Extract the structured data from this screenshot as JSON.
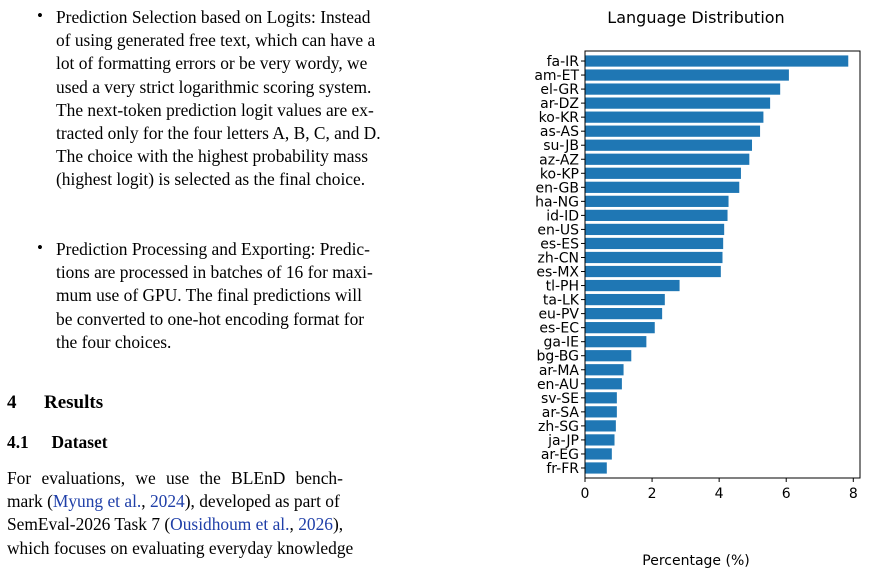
{
  "text": {
    "bullet1_lines": [
      "Prediction Selection based on Logits: Instead",
      "of using generated free text, which can have a",
      "lot of formatting errors or be very wordy, we",
      "used a very strict logarithmic scoring system.",
      "The next-token prediction logit values are ex-",
      "tracted only for the four letters A, B, C, and D.",
      "The choice with the highest probability mass",
      "(highest logit) is selected as the final choice."
    ],
    "bullet2_lines": [
      "Prediction Processing and Exporting: Predic-",
      "tions are processed in batches of 16 for maxi-",
      "mum use of GPU. The final predictions will",
      "be converted to one-hot encoding format for",
      "the four choices."
    ],
    "bullet_symbol": "•",
    "section_number": "4",
    "section_title": "Results",
    "subsection_number": "4.1",
    "subsection_title": "Dataset",
    "para": {
      "l1": "For evaluations, we use the BLEnD bench-",
      "l2_pre": "mark (",
      "l2_cite1": "Myung et al.",
      "l2_mid": ", ",
      "l2_cite2": "2024",
      "l2_post": "), developed as part of",
      "l3_pre": "SemEval-2026 Task 7 (",
      "l3_cite1": "Ousidhoum et al.",
      "l3_mid": ", ",
      "l3_cite2": "2026",
      "l3_post": "),",
      "l4": "which focuses on evaluating everyday knowledge"
    }
  },
  "chart_data": {
    "type": "bar",
    "orientation": "horizontal",
    "title": "Language Distribution",
    "xlabel": "Percentage (%)",
    "ylabel": "",
    "xlim": [
      0,
      8.2
    ],
    "xticks": [
      0,
      2,
      4,
      6,
      8
    ],
    "bar_color": "#1f77b4",
    "grid": false,
    "categories": [
      "fa-IR",
      "am-ET",
      "el-GR",
      "ar-DZ",
      "ko-KR",
      "as-AS",
      "su-JB",
      "az-AZ",
      "ko-KP",
      "en-GB",
      "ha-NG",
      "id-ID",
      "en-US",
      "es-ES",
      "zh-CN",
      "es-MX",
      "tl-PH",
      "ta-LK",
      "eu-PV",
      "es-EC",
      "ga-IE",
      "bg-BG",
      "ar-MA",
      "en-AU",
      "sv-SE",
      "ar-SA",
      "zh-SG",
      "ja-JP",
      "ar-EG",
      "fr-FR"
    ],
    "values": [
      7.85,
      6.08,
      5.82,
      5.52,
      5.32,
      5.22,
      4.98,
      4.9,
      4.65,
      4.6,
      4.28,
      4.25,
      4.15,
      4.12,
      4.1,
      4.05,
      2.82,
      2.38,
      2.3,
      2.08,
      1.83,
      1.38,
      1.15,
      1.1,
      0.95,
      0.95,
      0.92,
      0.88,
      0.8,
      0.65
    ]
  }
}
